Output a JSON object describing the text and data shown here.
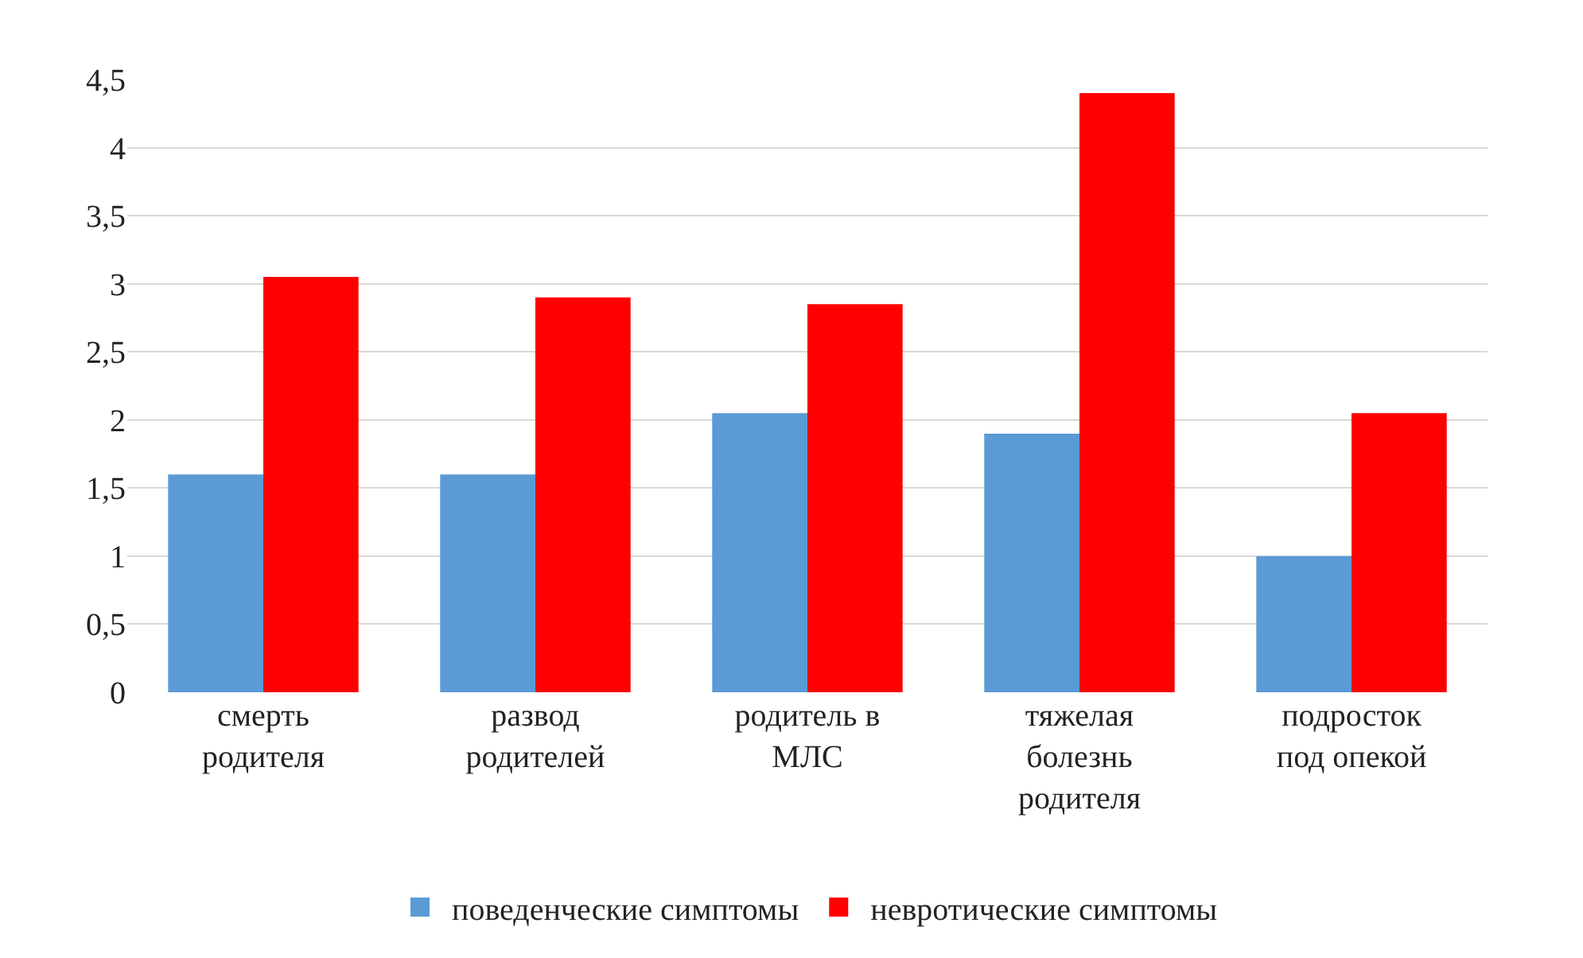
{
  "chart_data": {
    "type": "bar",
    "categories": [
      "смерть родителя",
      "развод родителей",
      "родитель в МЛС",
      "тяжелая болезнь родителя",
      "подросток под опекой"
    ],
    "series": [
      {
        "name": "поведенческие симптомы",
        "color": "#5b9bd5",
        "values": [
          1.6,
          1.6,
          2.05,
          1.9,
          1.0
        ]
      },
      {
        "name": "невротические симптомы",
        "color": "#ff0000",
        "values": [
          3.05,
          2.9,
          2.85,
          4.4,
          2.05
        ]
      }
    ],
    "ylim": [
      0,
      4.5
    ],
    "yticks": [
      0,
      {
        "value": 0.5,
        "label": "0,5"
      },
      1,
      {
        "value": 1.5,
        "label": "1,5"
      },
      2,
      {
        "value": 2.5,
        "label": "2,5"
      },
      3,
      {
        "value": 3.5,
        "label": "3,5"
      },
      4,
      {
        "value": 4.5,
        "label": "4,5"
      }
    ],
    "grid": "y",
    "legend": "bottom"
  }
}
